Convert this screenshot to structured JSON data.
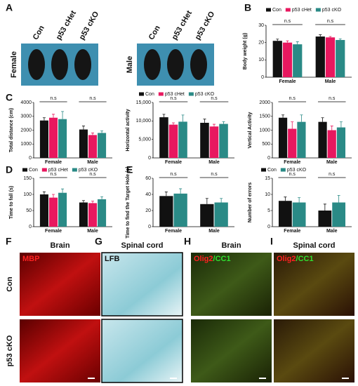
{
  "panel_letters": [
    "A",
    "B",
    "C",
    "D",
    "E",
    "F",
    "G",
    "H",
    "I"
  ],
  "photo_a": {
    "groups": [
      {
        "sex": "Female",
        "labels": [
          "Con",
          "p53 cHet",
          "p53 cKO"
        ]
      },
      {
        "sex": "Male",
        "labels": [
          "Con",
          "p53 cHet",
          "p53 cKO"
        ]
      }
    ]
  },
  "charts": [
    {
      "type": "bar",
      "ylabel": "Body weight (g)",
      "categories": [
        "Female",
        "Male"
      ],
      "legend": true,
      "series": [
        {
          "name": "Con",
          "color": "#111111",
          "values": [
            21,
            23.5
          ],
          "errors": [
            1,
            1
          ]
        },
        {
          "name": "p53 cHet",
          "color": "#e8185f",
          "values": [
            20,
            23
          ],
          "errors": [
            1,
            0.5
          ]
        },
        {
          "name": "p53 cKO",
          "color": "#2a8a86",
          "values": [
            19,
            21.5
          ],
          "errors": [
            1.5,
            0.7
          ]
        }
      ],
      "ylim": [
        0,
        30
      ],
      "yticks": [
        0,
        10,
        20,
        30
      ],
      "annotations": [
        "n.s",
        "n.s"
      ]
    },
    {
      "type": "bar",
      "ylabel": "Total distance (cm)",
      "categories": [
        "Female",
        "Male"
      ],
      "legend": false,
      "series": [
        {
          "name": "Con",
          "color": "#111111",
          "values": [
            2700,
            2050
          ],
          "errors": [
            200,
            250
          ]
        },
        {
          "name": "p53 cHet",
          "color": "#e8185f",
          "values": [
            2900,
            1650
          ],
          "errors": [
            250,
            150
          ]
        },
        {
          "name": "p53 cKO",
          "color": "#2a8a86",
          "values": [
            2800,
            1800
          ],
          "errors": [
            550,
            150
          ]
        }
      ],
      "ylim": [
        0,
        4000
      ],
      "yticks": [
        0,
        1000,
        2000,
        3000,
        4000
      ],
      "annotations": [
        "n.s",
        "n.s"
      ]
    },
    {
      "type": "bar",
      "ylabel": "Horizontal activity",
      "categories": [
        "Female",
        "Male"
      ],
      "legend": true,
      "series": [
        {
          "name": "Con",
          "color": "#111111",
          "values": [
            11000,
            9500
          ],
          "errors": [
            800,
            1000
          ]
        },
        {
          "name": "p53 cHet",
          "color": "#e8185f",
          "values": [
            9000,
            8500
          ],
          "errors": [
            500,
            600
          ]
        },
        {
          "name": "p53 cKO",
          "color": "#2a8a86",
          "values": [
            9800,
            9200
          ],
          "errors": [
            1800,
            600
          ]
        }
      ],
      "ylim": [
        0,
        15000
      ],
      "yticks": [
        0,
        {
          "value": 5000,
          "label": "5,000"
        },
        {
          "value": 10000,
          "label": "10,000"
        },
        {
          "value": 15000,
          "label": "15,000"
        }
      ],
      "annotations": [
        "n.s",
        "n.s"
      ]
    },
    {
      "type": "bar",
      "ylabel": "Vertical Activity",
      "categories": [
        "Female",
        "Male"
      ],
      "legend": false,
      "series": [
        {
          "name": "Con",
          "color": "#111111",
          "values": [
            1450,
            1300
          ],
          "errors": [
            100,
            150
          ]
        },
        {
          "name": "p53 cHet",
          "color": "#e8185f",
          "values": [
            1050,
            1000
          ],
          "errors": [
            250,
            150
          ]
        },
        {
          "name": "p53 cKO",
          "color": "#2a8a86",
          "values": [
            1300,
            1100
          ],
          "errors": [
            250,
            200
          ]
        }
      ],
      "ylim": [
        0,
        2000
      ],
      "yticks": [
        0,
        500,
        1000,
        1500,
        2000
      ],
      "annotations": [
        "n.s",
        "n.s"
      ]
    },
    {
      "type": "bar",
      "ylabel": "Time to fall (s)",
      "categories": [
        "Female",
        "Male"
      ],
      "legend": true,
      "series": [
        {
          "name": "Con",
          "color": "#111111",
          "values": [
            100,
            75
          ],
          "errors": [
            8,
            6
          ]
        },
        {
          "name": "p53 cHet",
          "color": "#e8185f",
          "values": [
            90,
            73
          ],
          "errors": [
            10,
            6
          ]
        },
        {
          "name": "p53 cKO",
          "color": "#2a8a86",
          "values": [
            105,
            85
          ],
          "errors": [
            12,
            8
          ]
        }
      ],
      "ylim": [
        0,
        150
      ],
      "yticks": [
        0,
        50,
        100,
        150
      ],
      "annotations": [
        "n.s",
        "n.s"
      ]
    },
    {
      "type": "bar",
      "ylabel": "Time to find the Target Hole (s)",
      "categories": [
        "Female",
        "Male"
      ],
      "legend": false,
      "series": [
        {
          "name": "Con",
          "color": "#111111",
          "values": [
            38,
            28
          ],
          "errors": [
            5,
            7
          ]
        },
        {
          "name": "p53 cKO",
          "color": "#2a8a86",
          "values": [
            41,
            30
          ],
          "errors": [
            6,
            5
          ]
        }
      ],
      "ylim": [
        0,
        60
      ],
      "yticks": [
        0,
        20,
        40,
        60
      ],
      "annotations": [
        "n.s",
        "n.s"
      ]
    },
    {
      "type": "bar",
      "ylabel": "Number of errors",
      "categories": [
        "Female",
        "Male"
      ],
      "legend": true,
      "series": [
        {
          "name": "Con",
          "color": "#111111",
          "values": [
            8,
            5
          ],
          "errors": [
            1.2,
            2
          ]
        },
        {
          "name": "p53 cKO",
          "color": "#2a8a86",
          "values": [
            7.5,
            7.5
          ],
          "errors": [
            1.5,
            2.2
          ]
        }
      ],
      "ylim": [
        0,
        15
      ],
      "yticks": [
        0,
        5,
        10,
        15
      ],
      "annotations": [
        "n.s",
        "n.s"
      ]
    }
  ],
  "histology": [
    {
      "title": "Brain",
      "stain": [
        "MBP"
      ]
    },
    {
      "title": "Spinal cord",
      "stain": [
        "LFB"
      ]
    },
    {
      "title": "Brain",
      "stain": [
        "Olig2",
        "/CC1"
      ]
    },
    {
      "title": "Spinal cord",
      "stain": [
        "Olig2",
        "/CC1"
      ]
    }
  ],
  "row_labels": [
    "Con",
    "p53 cKO"
  ]
}
